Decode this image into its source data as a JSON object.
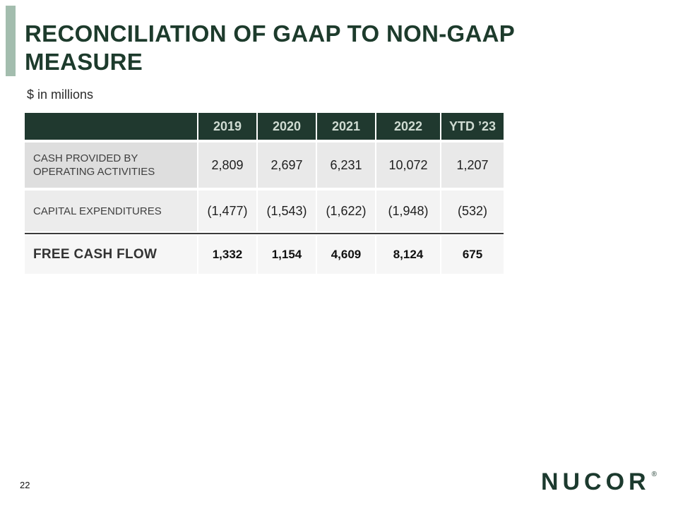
{
  "slide": {
    "title_line1": "RECONCILIATION OF GAAP TO NON-GAAP",
    "title_line2": "MEASURE",
    "subtitle": "$ in millions",
    "page_number": "22",
    "logo": {
      "text": "NUCOR",
      "registered": "®"
    }
  },
  "table": {
    "columns": [
      "2019",
      "2020",
      "2021",
      "2022",
      "YTD ’23"
    ],
    "rows": [
      {
        "label": "CASH PROVIDED BY OPERATING ACTIVITIES",
        "values": [
          "2,809",
          "2,697",
          "6,231",
          "10,072",
          "1,207"
        ]
      },
      {
        "label": "CAPITAL EXPENDITURES",
        "values": [
          "(1,477)",
          "(1,543)",
          "(1,622)",
          "(1,948)",
          "(532)"
        ]
      },
      {
        "label": "FREE CASH FLOW",
        "values": [
          "1,332",
          "1,154",
          "4,609",
          "8,124",
          "675"
        ]
      }
    ]
  },
  "colors": {
    "header_bg": "#20392f",
    "header_text": "#cfdbd2",
    "accent_bar": "#a3bdae",
    "title_text": "#1d3b2c",
    "rule": "#3c3c3c",
    "row1_bg": "#e9e9e9",
    "row2_bg": "#f3f3f3",
    "row3_bg": "#f6f6f6"
  }
}
